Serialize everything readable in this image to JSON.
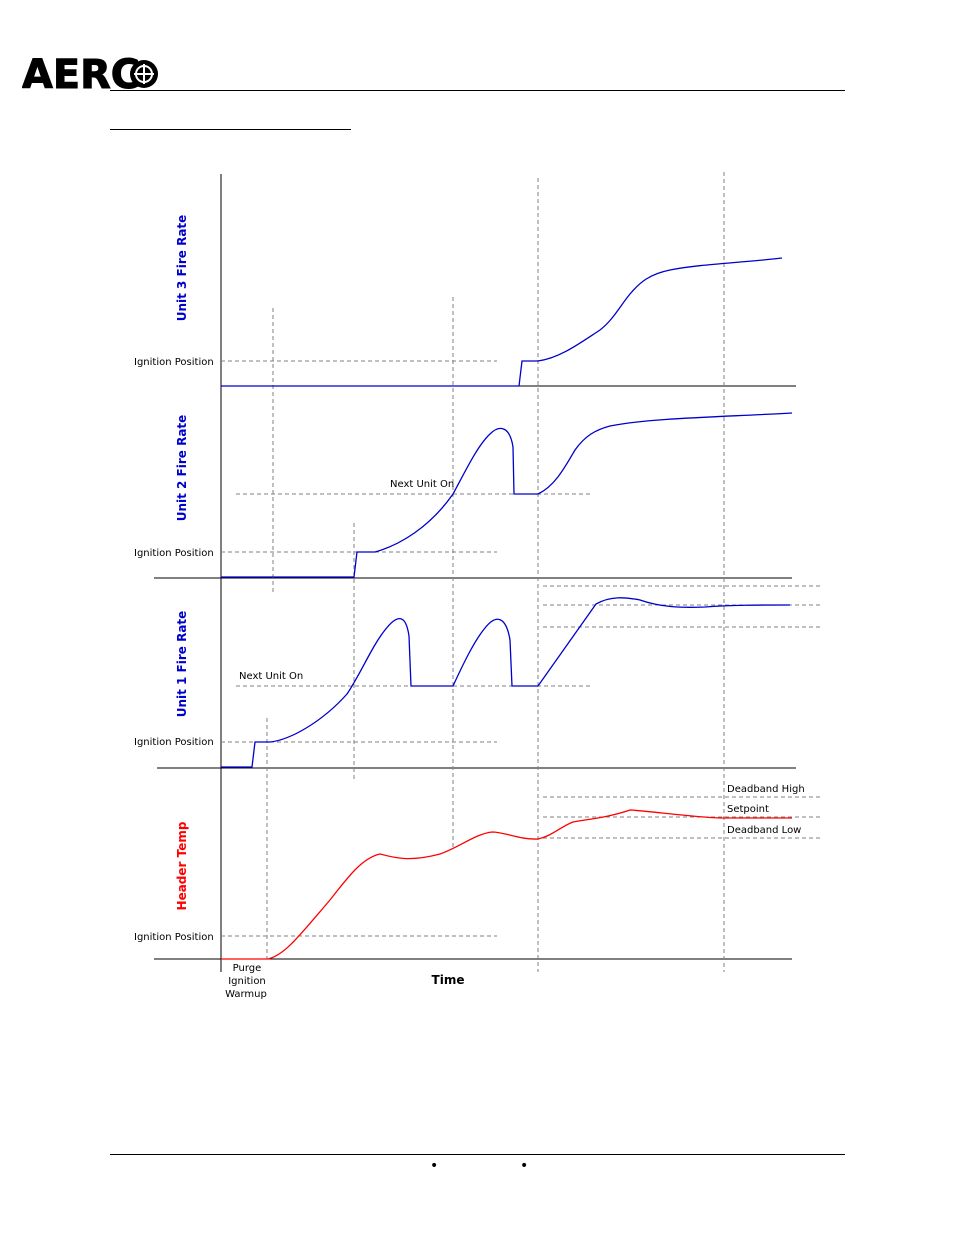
{
  "header": {
    "logo_text": "AERCO"
  },
  "diagram": {
    "panels": [
      {
        "title": "Unit 3 Fire Rate",
        "title_color": "#0000cc",
        "ignition_label": "Ignition Position"
      },
      {
        "title": "Unit 2 Fire Rate",
        "title_color": "#0000cc",
        "ignition_label": "Ignition Position",
        "next_unit_label": "Next Unit On"
      },
      {
        "title": "Unit 1 Fire Rate",
        "title_color": "#0000cc",
        "ignition_label": "Ignition Position",
        "next_unit_label": "Next Unit On"
      },
      {
        "title": "Header Temp",
        "title_color": "#ff0000",
        "ignition_label": "Ignition Position",
        "deadband_high": "Deadband High",
        "setpoint": "Setpoint",
        "deadband_low": "Deadband Low"
      }
    ],
    "phase_labels": [
      "Purge",
      "Ignition",
      "Warmup"
    ],
    "x_axis_label": "Time",
    "colors": {
      "fire_rate": "#0000cc",
      "header_temp": "#ff0000",
      "axis": "#000000",
      "guide": "#808080"
    }
  },
  "footer": {
    "bullets": [
      "•",
      "•"
    ]
  }
}
